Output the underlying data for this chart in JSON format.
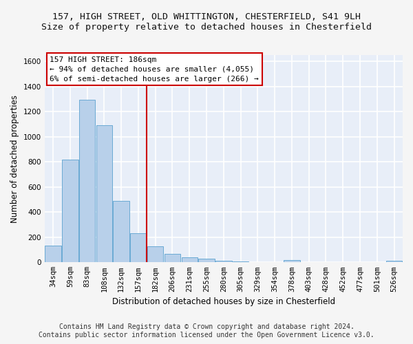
{
  "title_line1": "157, HIGH STREET, OLD WHITTINGTON, CHESTERFIELD, S41 9LH",
  "title_line2": "Size of property relative to detached houses in Chesterfield",
  "xlabel": "Distribution of detached houses by size in Chesterfield",
  "ylabel": "Number of detached properties",
  "bar_color": "#b8d0ea",
  "bar_edge_color": "#6aaad4",
  "categories": [
    "34sqm",
    "59sqm",
    "83sqm",
    "108sqm",
    "132sqm",
    "157sqm",
    "182sqm",
    "206sqm",
    "231sqm",
    "255sqm",
    "280sqm",
    "305sqm",
    "329sqm",
    "354sqm",
    "378sqm",
    "403sqm",
    "428sqm",
    "452sqm",
    "477sqm",
    "501sqm",
    "526sqm"
  ],
  "values": [
    135,
    815,
    1295,
    1090,
    490,
    233,
    130,
    68,
    40,
    28,
    14,
    7,
    0,
    0,
    18,
    0,
    0,
    0,
    0,
    0,
    14
  ],
  "ylim": [
    0,
    1650
  ],
  "yticks": [
    0,
    200,
    400,
    600,
    800,
    1000,
    1200,
    1400,
    1600
  ],
  "vline_x": 5.5,
  "vline_color": "#cc0000",
  "annotation_text": "157 HIGH STREET: 186sqm\n← 94% of detached houses are smaller (4,055)\n6% of semi-detached houses are larger (266) →",
  "annotation_box_color": "#ffffff",
  "annotation_box_edgecolor": "#cc0000",
  "footer_line1": "Contains HM Land Registry data © Crown copyright and database right 2024.",
  "footer_line2": "Contains public sector information licensed under the Open Government Licence v3.0.",
  "fig_background_color": "#f5f5f5",
  "plot_background_color": "#e8eef8",
  "grid_color": "#ffffff",
  "title_fontsize": 9.5,
  "subtitle_fontsize": 9.5,
  "axis_label_fontsize": 8.5,
  "tick_fontsize": 7.5,
  "annotation_fontsize": 8,
  "footer_fontsize": 7
}
